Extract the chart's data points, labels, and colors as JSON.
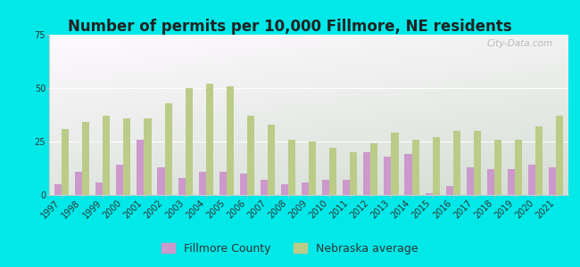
{
  "years": [
    1997,
    1998,
    1999,
    2000,
    2001,
    2002,
    2003,
    2004,
    2005,
    2006,
    2007,
    2008,
    2009,
    2010,
    2011,
    2012,
    2013,
    2014,
    2015,
    2016,
    2017,
    2018,
    2019,
    2020,
    2021
  ],
  "fillmore": [
    5,
    11,
    6,
    14,
    26,
    13,
    8,
    11,
    11,
    10,
    7,
    5,
    6,
    7,
    7,
    20,
    18,
    19,
    1,
    4,
    13,
    12,
    12,
    14,
    13
  ],
  "nebraska": [
    31,
    34,
    37,
    36,
    36,
    43,
    50,
    52,
    51,
    37,
    33,
    26,
    25,
    22,
    20,
    24,
    29,
    26,
    27,
    30,
    30,
    26,
    26,
    32,
    37
  ],
  "title": "Number of permits per 10,000 Fillmore, NE residents",
  "fillmore_color": "#cc99cc",
  "nebraska_color": "#bbcc88",
  "ylim": [
    0,
    75
  ],
  "yticks": [
    0,
    25,
    50,
    75
  ],
  "bar_width": 0.35,
  "title_fontsize": 12,
  "tick_fontsize": 7,
  "legend_fontsize": 9,
  "outer_bg": "#00e8e8",
  "watermark": "City-Data.com"
}
